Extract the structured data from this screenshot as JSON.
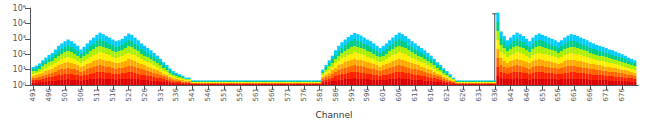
{
  "chart_data": {
    "type": "bar",
    "xlabel": "Channel",
    "x": [
      491,
      492,
      493,
      494,
      495,
      496,
      497,
      498,
      499,
      500,
      501,
      502,
      503,
      504,
      505,
      506,
      507,
      508,
      509,
      510,
      511,
      512,
      513,
      514,
      515,
      516,
      517,
      518,
      519,
      520,
      521,
      522,
      523,
      524,
      525,
      526,
      527,
      528,
      529,
      530,
      531,
      532,
      533,
      534,
      535,
      536,
      537,
      538,
      539,
      540,
      541,
      542,
      543,
      544,
      545,
      546,
      547,
      548,
      549,
      550,
      551,
      552,
      553,
      554,
      555,
      556,
      557,
      558,
      559,
      560,
      561,
      562,
      563,
      564,
      565,
      566,
      567,
      568,
      569,
      570,
      571,
      572,
      573,
      574,
      575,
      576,
      577,
      578,
      579,
      580,
      581,
      582,
      583,
      584,
      585,
      586,
      587,
      588,
      589,
      590,
      591,
      592,
      593,
      594,
      595,
      596,
      597,
      598,
      599,
      600,
      601,
      602,
      603,
      604,
      605,
      606,
      607,
      608,
      609,
      610,
      611,
      612,
      613,
      614,
      615,
      616,
      617,
      618,
      619,
      620,
      621,
      622,
      623,
      624,
      625,
      626,
      627,
      628,
      629,
      630,
      631,
      632,
      633,
      634,
      635,
      636,
      637,
      638,
      639,
      640,
      641,
      642,
      643,
      644,
      645,
      646,
      647,
      648,
      649,
      650,
      651,
      652,
      653,
      654,
      655,
      656,
      657,
      658,
      659,
      660,
      661,
      662,
      663,
      664,
      665,
      666,
      667,
      668,
      669,
      670,
      671,
      672,
      673,
      674,
      675,
      676,
      677,
      678,
      679,
      680
    ],
    "values": [
      15,
      18,
      25,
      40,
      60,
      90,
      120,
      200,
      350,
      500,
      700,
      900,
      700,
      500,
      350,
      200,
      300,
      500,
      800,
      1200,
      1800,
      2500,
      2000,
      1500,
      1200,
      900,
      700,
      800,
      1000,
      1500,
      2200,
      1800,
      1200,
      800,
      500,
      350,
      250,
      180,
      120,
      80,
      50,
      30,
      20,
      12,
      8,
      6,
      5,
      4,
      3,
      3,
      2,
      2,
      2,
      2,
      2,
      2,
      2,
      2,
      2,
      2,
      2,
      2,
      2,
      2,
      2,
      2,
      2,
      2,
      2,
      2,
      2,
      2,
      2,
      2,
      2,
      2,
      2,
      2,
      2,
      2,
      2,
      2,
      2,
      2,
      2,
      2,
      2,
      2,
      2,
      2,
      2,
      10,
      20,
      40,
      80,
      180,
      350,
      600,
      900,
      1300,
      1800,
      2400,
      2000,
      1600,
      1200,
      900,
      700,
      500,
      350,
      250,
      350,
      500,
      800,
      1200,
      1800,
      2500,
      2000,
      1500,
      1000,
      700,
      500,
      350,
      250,
      180,
      120,
      80,
      50,
      30,
      20,
      12,
      8,
      5,
      3,
      2,
      2,
      2,
      2,
      2,
      2,
      2,
      2,
      2,
      2,
      2,
      2,
      2,
      50000,
      3000,
      1500,
      800,
      1200,
      1800,
      2500,
      2000,
      1500,
      1000,
      700,
      1200,
      1800,
      2200,
      1800,
      1500,
      1200,
      1000,
      800,
      600,
      800,
      1200,
      1600,
      2000,
      1800,
      1500,
      1200,
      1000,
      800,
      600,
      500,
      400,
      350,
      300,
      250,
      200,
      180,
      150,
      120,
      100,
      80,
      60,
      50,
      40
    ],
    "colors": [
      "#dd0000",
      "#ff2000",
      "#ff6600",
      "#ffaa00",
      "#ffee00",
      "#aaee00",
      "#00cc88",
      "#00ccff"
    ],
    "error_bar": {
      "x": 636,
      "value": 2000,
      "err": 40000,
      "color": "#444444"
    },
    "log": "y",
    "grid": false,
    "xlim": [
      490,
      681
    ],
    "xticks": [
      491,
      496,
      501,
      506,
      511,
      516,
      521,
      526,
      531,
      536,
      541,
      546,
      551,
      556,
      561,
      566,
      571,
      576,
      581,
      586,
      591,
      596,
      601,
      606,
      611,
      616,
      621,
      626,
      631,
      636,
      641,
      646,
      651,
      656,
      661,
      666,
      671,
      676
    ],
    "ylim": [
      1,
      100000
    ],
    "yticks": [
      {
        "value": 1,
        "label": "10⁰"
      },
      {
        "value": 10,
        "label": "10¹"
      },
      {
        "value": 100,
        "label": "10²"
      },
      {
        "value": 1000,
        "label": "10³"
      },
      {
        "value": 10000,
        "label": "10⁴"
      },
      {
        "value": 100000,
        "label": "10⁵"
      }
    ]
  }
}
